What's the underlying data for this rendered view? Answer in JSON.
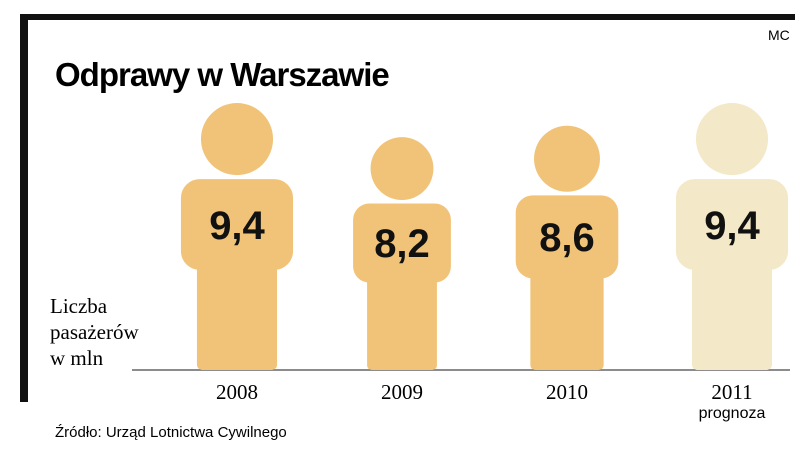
{
  "chart_data": {
    "type": "pictogram",
    "title": "Odprawy w Warszawie",
    "credit": "MC",
    "axis_label": [
      "Liczba",
      "pasażerów",
      "w mln"
    ],
    "categories": [
      "2008",
      "2009",
      "2010",
      "2011"
    ],
    "category_notes": [
      null,
      null,
      null,
      "prognoza"
    ],
    "values": [
      9.4,
      8.2,
      8.6,
      9.4
    ],
    "value_labels": [
      "9,4",
      "8,2",
      "8,6",
      "9,4"
    ],
    "colors": [
      "#f1c378",
      "#f1c378",
      "#f1c378",
      "#f3e8c8"
    ],
    "source": "Źródło: Urząd Lotnictwa Cywilnego"
  }
}
